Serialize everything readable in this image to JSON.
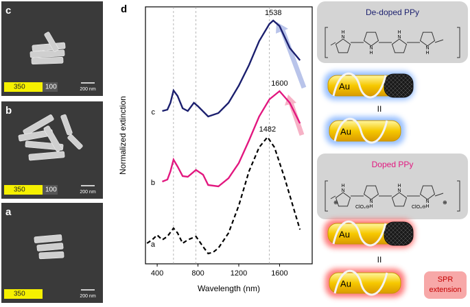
{
  "panels": [
    {
      "letter": "c",
      "bar_labels": [
        "350",
        "100"
      ],
      "scale": "200 nm"
    },
    {
      "letter": "b",
      "bar_labels": [
        "350",
        "100"
      ],
      "scale": "200 nm"
    },
    {
      "letter": "a",
      "bar_labels": [
        "350"
      ],
      "scale": "200 nm"
    }
  ],
  "chart_data": {
    "type": "line",
    "panel_letter": "d",
    "x_label": "Wavelength (nm)",
    "y_label": "Normalized extinction",
    "xlim": [
      285,
      1920
    ],
    "ylim": [
      0,
      3.75
    ],
    "xticks": [
      400,
      800,
      1200,
      1600
    ],
    "reference_lines": [
      560,
      780,
      1500
    ],
    "series": [
      {
        "name": "c",
        "color": "#1b1f6e",
        "dashed": false,
        "peak": 1538,
        "x": [
          450,
          500,
          530,
          560,
          600,
          650,
          700,
          760,
          800,
          900,
          1000,
          1100,
          1200,
          1300,
          1400,
          1500,
          1538,
          1600,
          1700,
          1800
        ],
        "values": [
          2.23,
          2.25,
          2.35,
          2.53,
          2.45,
          2.27,
          2.23,
          2.35,
          2.3,
          2.15,
          2.2,
          2.35,
          2.6,
          2.9,
          3.25,
          3.5,
          3.55,
          3.47,
          3.15,
          2.97
        ]
      },
      {
        "name": "b",
        "color": "#e2177f",
        "dashed": false,
        "peak": 1600,
        "x": [
          450,
          500,
          530,
          560,
          600,
          650,
          700,
          780,
          850,
          900,
          1000,
          1100,
          1200,
          1300,
          1400,
          1500,
          1600,
          1700,
          1800
        ],
        "values": [
          1.2,
          1.23,
          1.35,
          1.52,
          1.42,
          1.28,
          1.27,
          1.37,
          1.3,
          1.15,
          1.13,
          1.25,
          1.47,
          1.8,
          2.15,
          2.4,
          2.52,
          2.35,
          2.05
        ]
      },
      {
        "name": "a",
        "color": "#000000",
        "dashed": true,
        "peak": 1482,
        "x": [
          300,
          350,
          400,
          450,
          500,
          560,
          600,
          650,
          700,
          780,
          850,
          900,
          950,
          1000,
          1100,
          1200,
          1300,
          1400,
          1482,
          1550,
          1650,
          1750,
          1800
        ],
        "values": [
          0.3,
          0.35,
          0.42,
          0.35,
          0.4,
          0.52,
          0.45,
          0.3,
          0.35,
          0.4,
          0.25,
          0.15,
          0.17,
          0.23,
          0.45,
          0.85,
          1.35,
          1.7,
          1.85,
          1.7,
          1.25,
          0.75,
          0.5
        ]
      }
    ]
  },
  "diagram": {
    "top_title": "De-doped PPy",
    "bottom_title": "Doped PPy",
    "rod_label": "Au",
    "equals": "II",
    "atom_n": "N",
    "atom_h": "H",
    "counter_ion": "ClO₄⊖",
    "charge": "⊕",
    "spr": [
      "SPR",
      "extension"
    ]
  }
}
